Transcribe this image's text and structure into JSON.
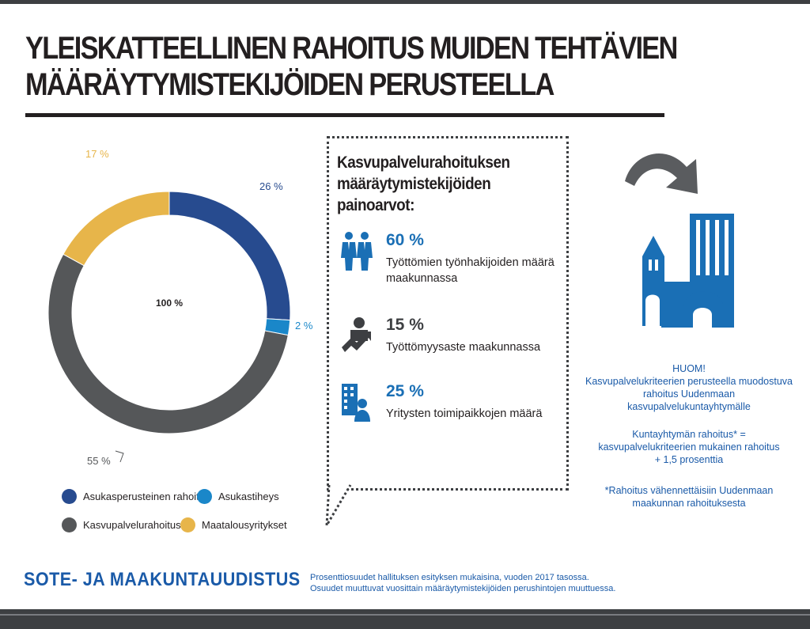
{
  "title": {
    "line1": "YLEISKATTEELLINEN RAHOITUS MUIDEN TEHTÄVIEN",
    "line2": "MÄÄRÄYTYMISTEKIJÖIDEN PERUSTEELLA"
  },
  "chart_data": {
    "type": "pie",
    "donut": true,
    "center_label": "100 %",
    "categories": [
      "Asukasperusteinen rahoitus",
      "Asukastiheys",
      "Kasvupalvelurahoitus",
      "Maatalousyritykset"
    ],
    "values": [
      26,
      2,
      55,
      17
    ],
    "value_labels": [
      "26 %",
      "2 %",
      "55 %",
      "17 %"
    ],
    "colors": [
      "#274b8f",
      "#1a87c9",
      "#555759",
      "#e7b54a"
    ],
    "legend": "bottom"
  },
  "callout": {
    "title": "Kasvupalvelurahoituksen määräytymistekijöiden painoarvot:",
    "factors": [
      {
        "percent": "60 %",
        "description": "Työttömien työnhakijoiden määrä maakunnassa",
        "icon": "job-seekers-icon",
        "color": "#1a6fb5"
      },
      {
        "percent": "15 %",
        "description": "Työttömyysaste maakunnassa",
        "icon": "unemployment-trend-icon",
        "color": "#3d3f42"
      },
      {
        "percent": "25 %",
        "description": "Yritysten toimipaikkojen määrä",
        "icon": "business-building-icon",
        "color": "#1a6fb5"
      }
    ]
  },
  "side": {
    "arrow_icon": "curved-arrow-icon",
    "city_icon": "city-skyline-icon",
    "note1": "HUOM!\nKasvupalvelukriteerien perusteella muodostuva rahoitus Uudenmaan kasvupalvelukuntayhtymälle",
    "note2": "Kuntayhtymän rahoitus* =\nkasvupalvelukriteerien mukainen rahoitus\n+ 1,5 prosenttia",
    "note3": "*Rahoitus vähennettäisiin Uudenmaan\nmaakunnan rahoituksesta"
  },
  "footer": {
    "brand": "SOTE- JA MAAKUNTAUUDISTUS",
    "footnote1": "Prosenttiosuudet hallituksen esityksen mukaisina, vuoden 2017 tasossa.",
    "footnote2": "Osuudet muuttuvat vuosittain määräytymistekijöiden perushintojen muuttuessa."
  },
  "colors": {
    "accent_blue": "#1a5aa8",
    "dark": "#231f20",
    "bar": "#3d3f42"
  }
}
